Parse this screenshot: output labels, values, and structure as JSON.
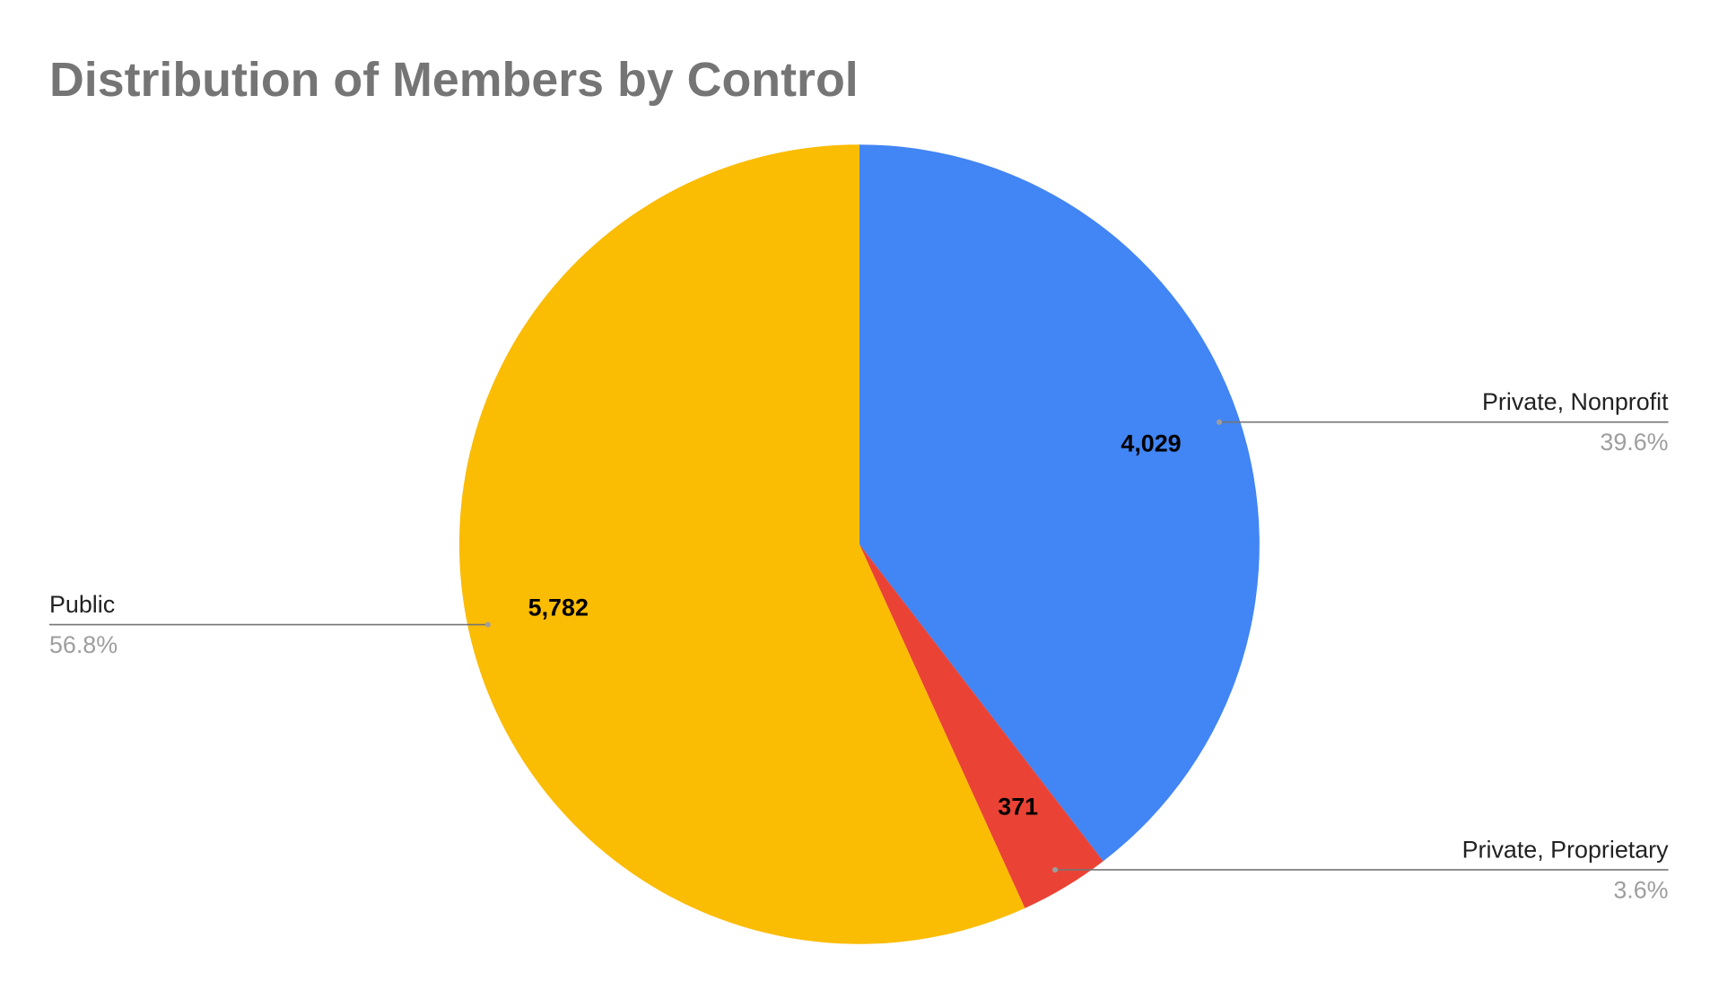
{
  "chart_data": {
    "type": "pie",
    "title": "Distribution of Members by Control",
    "categories": [
      "Private, Nonprofit",
      "Private, Proprietary",
      "Public"
    ],
    "values": [
      4029,
      371,
      5782
    ],
    "value_labels": [
      "4,029",
      "371",
      "5,782"
    ],
    "percent_labels": [
      "39.6%",
      "3.6%",
      "56.8%"
    ],
    "colors": [
      "#4285f4",
      "#ea4335",
      "#fbbc04"
    ]
  }
}
